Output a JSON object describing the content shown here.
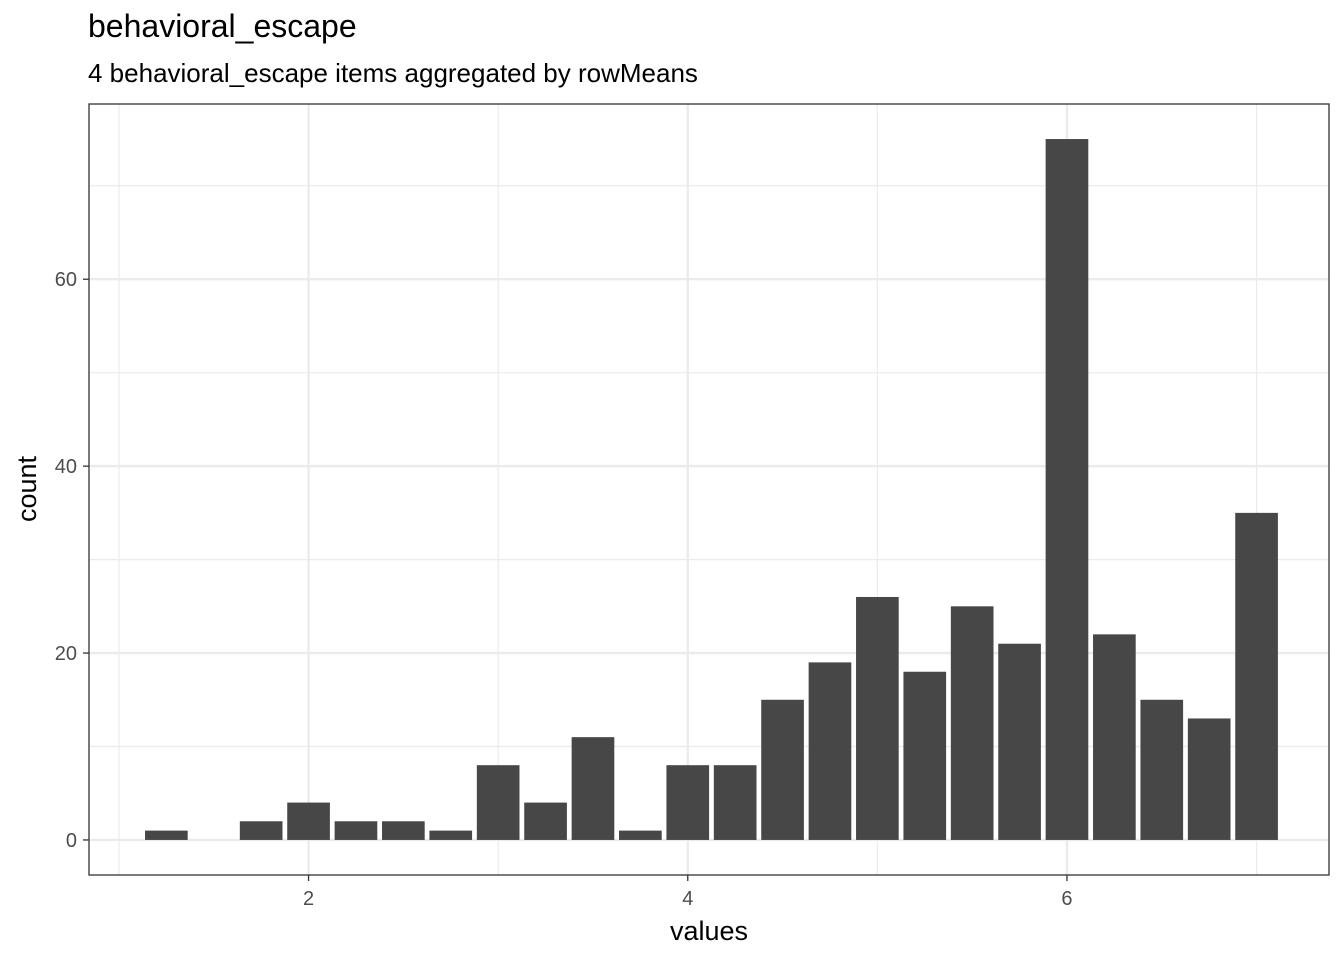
{
  "chart_data": {
    "type": "bar",
    "title": "behavioral_escape",
    "subtitle": "4 behavioral_escape items aggregated by rowMeans",
    "xlabel": "values",
    "ylabel": "count",
    "xlim": [
      0.842,
      7.382
    ],
    "ylim": [
      -3.75,
      78.75
    ],
    "x_ticks": [
      2,
      4,
      6
    ],
    "x_tick_labels": [
      "2",
      "4",
      "6"
    ],
    "y_ticks": [
      0,
      20,
      40,
      60
    ],
    "y_tick_labels": [
      "0",
      "20",
      "40",
      "60"
    ],
    "grid": true,
    "bar_color": "#474747",
    "bar_width": 0.225,
    "bars": [
      {
        "x": 1.25,
        "count": 1
      },
      {
        "x": 1.75,
        "count": 2
      },
      {
        "x": 2.0,
        "count": 4
      },
      {
        "x": 2.25,
        "count": 2
      },
      {
        "x": 2.5,
        "count": 2
      },
      {
        "x": 2.75,
        "count": 1
      },
      {
        "x": 3.0,
        "count": 8
      },
      {
        "x": 3.25,
        "count": 4
      },
      {
        "x": 3.5,
        "count": 11
      },
      {
        "x": 3.75,
        "count": 1
      },
      {
        "x": 4.0,
        "count": 8
      },
      {
        "x": 4.25,
        "count": 8
      },
      {
        "x": 4.5,
        "count": 15
      },
      {
        "x": 4.75,
        "count": 19
      },
      {
        "x": 5.0,
        "count": 26
      },
      {
        "x": 5.25,
        "count": 18
      },
      {
        "x": 5.5,
        "count": 25
      },
      {
        "x": 5.75,
        "count": 21
      },
      {
        "x": 6.0,
        "count": 75
      },
      {
        "x": 6.25,
        "count": 22
      },
      {
        "x": 6.5,
        "count": 15
      },
      {
        "x": 6.75,
        "count": 13
      },
      {
        "x": 7.0,
        "count": 35
      }
    ]
  }
}
